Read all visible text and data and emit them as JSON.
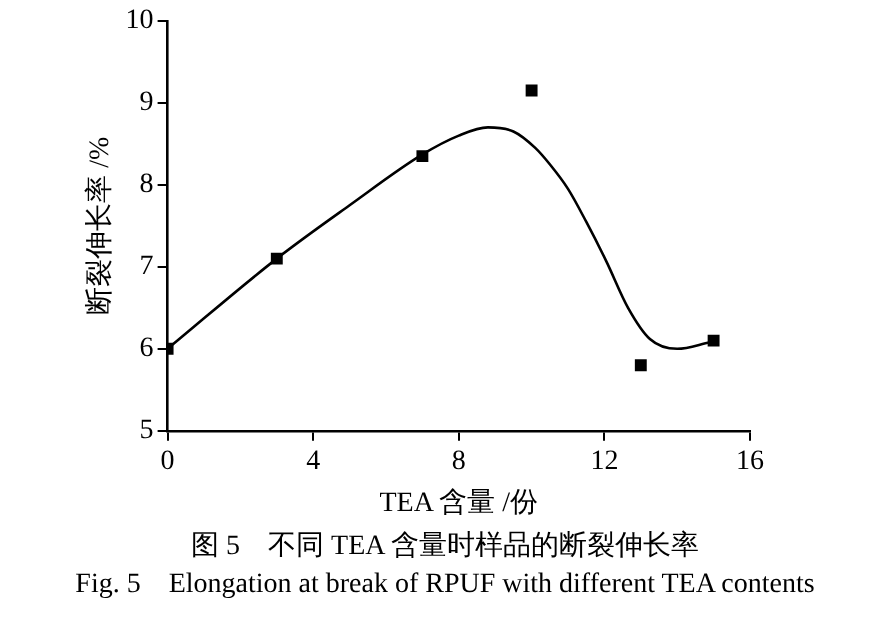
{
  "chart_data": {
    "type": "scatter",
    "xlabel": "TEA 含量 /份",
    "ylabel": "断裂伸长率 /%",
    "xlim": [
      0,
      16
    ],
    "xticks": [
      0,
      4,
      8,
      12,
      16
    ],
    "ylim": [
      5,
      10
    ],
    "yticks": [
      5,
      6,
      7,
      8,
      9,
      10
    ],
    "grid": false,
    "legend": false,
    "series": [
      {
        "color": "#000000",
        "marker": "square",
        "x": [
          0,
          3,
          7,
          10,
          13,
          15
        ],
        "values": [
          6.0,
          7.1,
          8.35,
          9.15,
          5.8,
          6.1
        ]
      },
      {
        "type": "line",
        "color": "#000000",
        "marker": "none",
        "x": [
          0,
          3,
          5,
          7,
          8,
          8.8,
          9.5,
          10.1,
          10.5,
          11,
          11.5,
          12.05,
          12.65,
          13.25,
          14,
          14.9
        ],
        "values": [
          6.0,
          7.1,
          7.75,
          8.37,
          8.6,
          8.7,
          8.65,
          8.45,
          8.25,
          7.95,
          7.55,
          7.07,
          6.5,
          6.12,
          6.0,
          6.08
        ]
      }
    ],
    "annotations": [
      "图 5　不同 TEA 含量时样品的断裂伸长率",
      "Fig. 5　Elongation at break of RPUF with different TEA contents"
    ]
  }
}
